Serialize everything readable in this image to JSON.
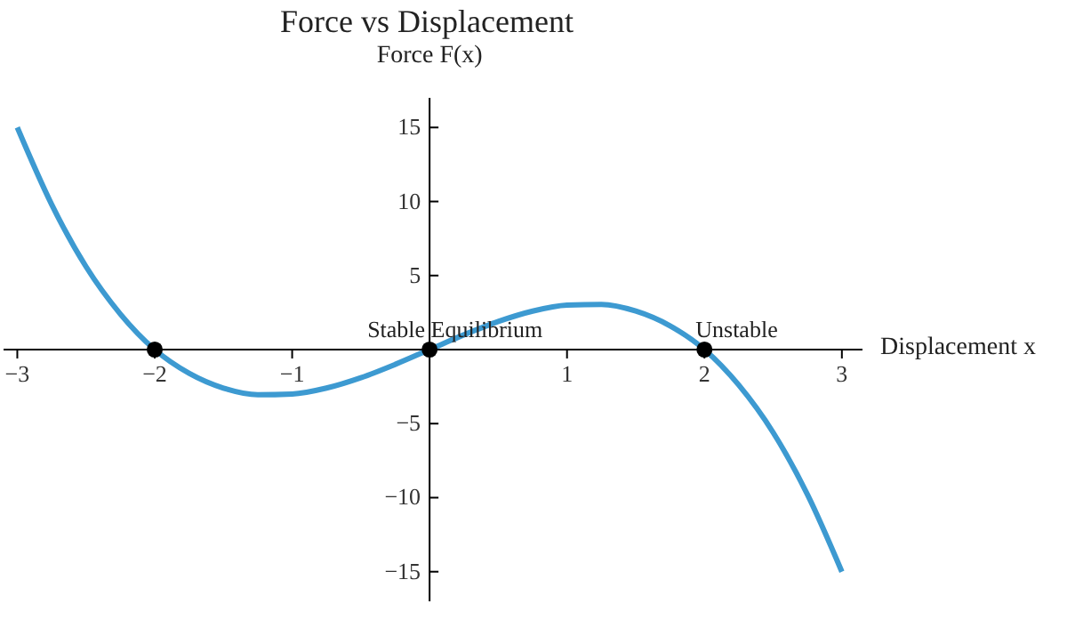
{
  "chart_data": {
    "type": "line",
    "title": "Force vs Displacement",
    "xlabel": "Displacement x",
    "ylabel": "Force F(x)",
    "xlim": [
      -3.1,
      3.15
    ],
    "ylim": [
      -17,
      17
    ],
    "xticks": [
      -3,
      -2,
      -1,
      1,
      2,
      3
    ],
    "yticks": [
      -15,
      -10,
      -5,
      5,
      10,
      15
    ],
    "series": [
      {
        "color": "#3d9ad1",
        "marker": "none",
        "x": [
          -3,
          -2.75,
          -2.5,
          -2.25,
          -2,
          -1.75,
          -1.5,
          -1.25,
          -1,
          -0.75,
          -0.5,
          -0.25,
          0,
          0.25,
          0.5,
          0.75,
          1,
          1.25,
          1.5,
          1.75,
          2,
          2.25,
          2.5,
          2.75,
          3
        ],
        "values": [
          15,
          9.8,
          5.6,
          2.4,
          0,
          -1.6,
          -2.6,
          -3.05,
          -3,
          -2.6,
          -1.9,
          -1,
          0,
          1,
          1.9,
          2.6,
          3,
          3.05,
          2.6,
          1.6,
          0,
          -2.4,
          -5.6,
          -9.8,
          -15
        ]
      },
      {
        "type": "scatter",
        "color": "#000000",
        "marker": "circle",
        "x": [
          -2,
          0,
          2
        ],
        "values": [
          0,
          0,
          0
        ]
      }
    ],
    "annotations": [
      {
        "text": "Stable Equilibrium",
        "x": 0,
        "y": 0
      },
      {
        "text": "Unstable",
        "x": 2,
        "y": 0
      }
    ]
  }
}
